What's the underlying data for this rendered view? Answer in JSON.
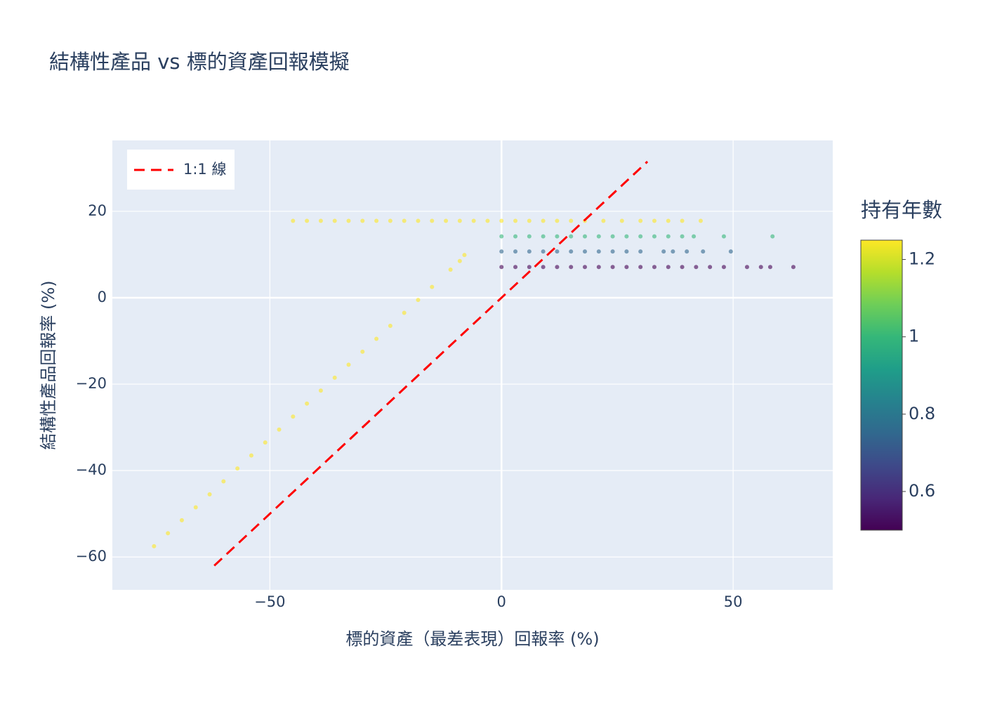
{
  "chart_data": {
    "type": "scatter",
    "title": "結構性產品 vs 標的資產回報模擬",
    "x_label": "標的資產（最差表現）回報率 (%)",
    "y_label": "結構性產品回報率 (%)",
    "xlim": [
      -84,
      71.5
    ],
    "ylim": [
      -67.6,
      36.4
    ],
    "xticks": [
      {
        "value": -50,
        "label": "−50"
      },
      0,
      50
    ],
    "yticks": [
      {
        "value": -60,
        "label": "−60"
      },
      {
        "value": -40,
        "label": "−40"
      },
      {
        "value": -20,
        "label": "−20"
      },
      0,
      20
    ],
    "grid": true,
    "legend_position": "top-left",
    "colorbar": {
      "title": "持有年數",
      "colorscale": "Viridis",
      "lim": [
        0.5,
        1.25
      ],
      "ticks": [
        0.6,
        0.8,
        1,
        1.2
      ]
    },
    "series": [
      {
        "mode": "markers",
        "opacity": 0.6,
        "x": [
          -45,
          -42,
          -39,
          -36,
          -33,
          -30,
          -27,
          -24,
          -21,
          -18,
          -15,
          -12,
          -9,
          -6,
          -3,
          0,
          3,
          6,
          9,
          12,
          15,
          18,
          22,
          26,
          30,
          33,
          36,
          39,
          43,
          -75,
          -72,
          -69,
          -66,
          -63,
          -60,
          -57,
          -54,
          -51,
          -48,
          -45,
          -42,
          -39,
          -36,
          -33,
          -30,
          -27,
          -24,
          -21,
          -18,
          -15,
          -11,
          -9,
          -8,
          0,
          3,
          6,
          9,
          12,
          15,
          18,
          21,
          24,
          27,
          30,
          33,
          36,
          39,
          41.5,
          48,
          58.5,
          0,
          3,
          6,
          9,
          12,
          15,
          18,
          21,
          24,
          27,
          30,
          35,
          37,
          40,
          43.5,
          49.5,
          0,
          3,
          6,
          9,
          12,
          15,
          18,
          21,
          24,
          27,
          30,
          33,
          36,
          39,
          42,
          45,
          48,
          53,
          56,
          58,
          63
        ],
        "values": [
          17.8,
          17.8,
          17.8,
          17.8,
          17.8,
          17.8,
          17.8,
          17.8,
          17.8,
          17.8,
          17.8,
          17.8,
          17.8,
          17.8,
          17.8,
          17.8,
          17.8,
          17.8,
          17.8,
          17.8,
          17.8,
          17.8,
          17.8,
          17.8,
          17.8,
          17.8,
          17.8,
          17.8,
          17.8,
          -57.5,
          -54.5,
          -51.5,
          -48.5,
          -45.5,
          -42.5,
          -39.5,
          -36.5,
          -33.5,
          -30.5,
          -27.5,
          -24.5,
          -21.5,
          -18.5,
          -15.5,
          -12.5,
          -9.5,
          -6.5,
          -3.5,
          -0.5,
          2.5,
          6.5,
          8.5,
          9.9,
          14.2,
          14.2,
          14.2,
          14.2,
          14.2,
          14.2,
          14.2,
          14.2,
          14.2,
          14.2,
          14.2,
          14.2,
          14.2,
          14.2,
          14.2,
          14.2,
          14.2,
          10.7,
          10.7,
          10.7,
          10.7,
          10.7,
          10.7,
          10.7,
          10.7,
          10.7,
          10.7,
          10.7,
          10.7,
          10.7,
          10.7,
          10.7,
          10.7,
          7.1,
          7.1,
          7.1,
          7.1,
          7.1,
          7.1,
          7.1,
          7.1,
          7.1,
          7.1,
          7.1,
          7.1,
          7.1,
          7.1,
          7.1,
          7.1,
          7.1,
          7.1,
          7.1,
          7.1,
          7.1
        ],
        "color_values": [
          1.25,
          1.25,
          1.25,
          1.25,
          1.25,
          1.25,
          1.25,
          1.25,
          1.25,
          1.25,
          1.25,
          1.25,
          1.25,
          1.25,
          1.25,
          1.25,
          1.25,
          1.25,
          1.25,
          1.25,
          1.25,
          1.25,
          1.25,
          1.25,
          1.25,
          1.25,
          1.25,
          1.25,
          1.25,
          1.25,
          1.25,
          1.25,
          1.25,
          1.25,
          1.25,
          1.25,
          1.25,
          1.25,
          1.25,
          1.25,
          1.25,
          1.25,
          1.25,
          1.25,
          1.25,
          1.25,
          1.25,
          1.25,
          1.25,
          1.25,
          1.25,
          1.25,
          1.25,
          1,
          1,
          1,
          1,
          1,
          1,
          1,
          1,
          1,
          1,
          1,
          1,
          1,
          1,
          1,
          1,
          1,
          0.75,
          0.75,
          0.75,
          0.75,
          0.75,
          0.75,
          0.75,
          0.75,
          0.75,
          0.75,
          0.75,
          0.75,
          0.75,
          0.75,
          0.75,
          0.75,
          0.5,
          0.5,
          0.5,
          0.5,
          0.5,
          0.5,
          0.5,
          0.5,
          0.5,
          0.5,
          0.5,
          0.5,
          0.5,
          0.5,
          0.5,
          0.5,
          0.5,
          0.5,
          0.5,
          0.5,
          0.5
        ]
      },
      {
        "mode": "lines",
        "name": "1:1 線",
        "color": "red",
        "dash": "dash",
        "x": [
          -62,
          31.5
        ],
        "values": [
          -62,
          31.5
        ]
      }
    ]
  }
}
